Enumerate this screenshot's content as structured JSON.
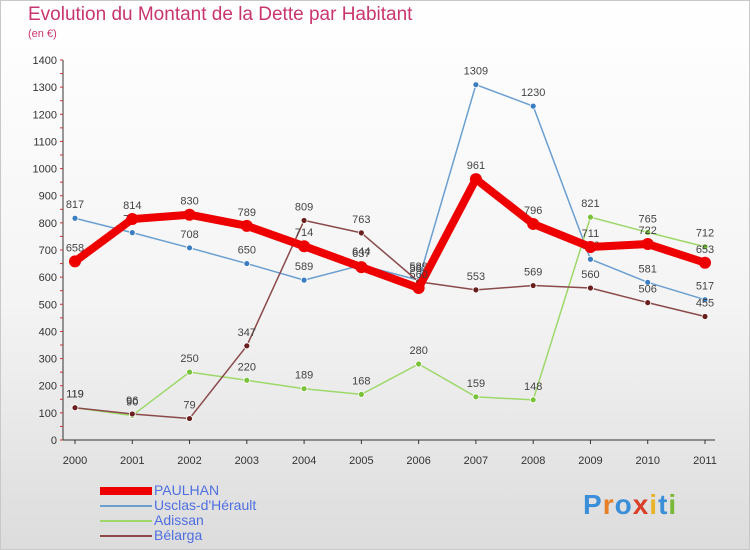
{
  "title": "Evolution du Montant de la Dette par Habitant",
  "unit_label": "(en €)",
  "logo": {
    "text": "Proxiti",
    "letter_colors": [
      "#3a8fd8",
      "#e8802a",
      "#3a8fd8",
      "#d8402a",
      "#e8b52a",
      "#3a8fd8",
      "#7ab83a"
    ]
  },
  "chart_data": {
    "type": "line",
    "title": "Evolution du Montant de la Dette par Habitant",
    "ylabel": "(en €)",
    "xlabel": "",
    "x": [
      "2000",
      "2001",
      "2002",
      "2003",
      "2004",
      "2005",
      "2006",
      "2007",
      "2008",
      "2009",
      "2010",
      "2011"
    ],
    "ylim": [
      0,
      1400
    ],
    "yticks": [
      0,
      100,
      200,
      300,
      400,
      500,
      600,
      700,
      800,
      900,
      1000,
      1100,
      1200,
      1300,
      1400
    ],
    "grid": false,
    "legend": "bottom-left",
    "series": [
      {
        "name": "Usclas-d'Hérault",
        "color": "#6a9fd0",
        "point_color": "#3a7dc0",
        "values": [
          817,
          764,
          708,
          650,
          589,
          644,
          589,
          1309,
          1230,
          666,
          581,
          517
        ]
      },
      {
        "name": "Adissan",
        "color": "#9ed86a",
        "point_color": "#7ac23a",
        "values": [
          119,
          90,
          250,
          220,
          189,
          168,
          280,
          159,
          148,
          821,
          765,
          712
        ]
      },
      {
        "name": "Bélarga",
        "color": "#8a4a4a",
        "point_color": "#6a1f1f",
        "values": [
          119,
          96,
          79,
          347,
          809,
          763,
          583,
          553,
          569,
          560,
          506,
          455
        ]
      },
      {
        "name": "PAULHAN",
        "color": "#ee0000",
        "point_color": "#ee0000",
        "values": [
          658,
          814,
          830,
          789,
          714,
          637,
          560,
          961,
          796,
          711,
          722,
          653
        ]
      }
    ]
  }
}
